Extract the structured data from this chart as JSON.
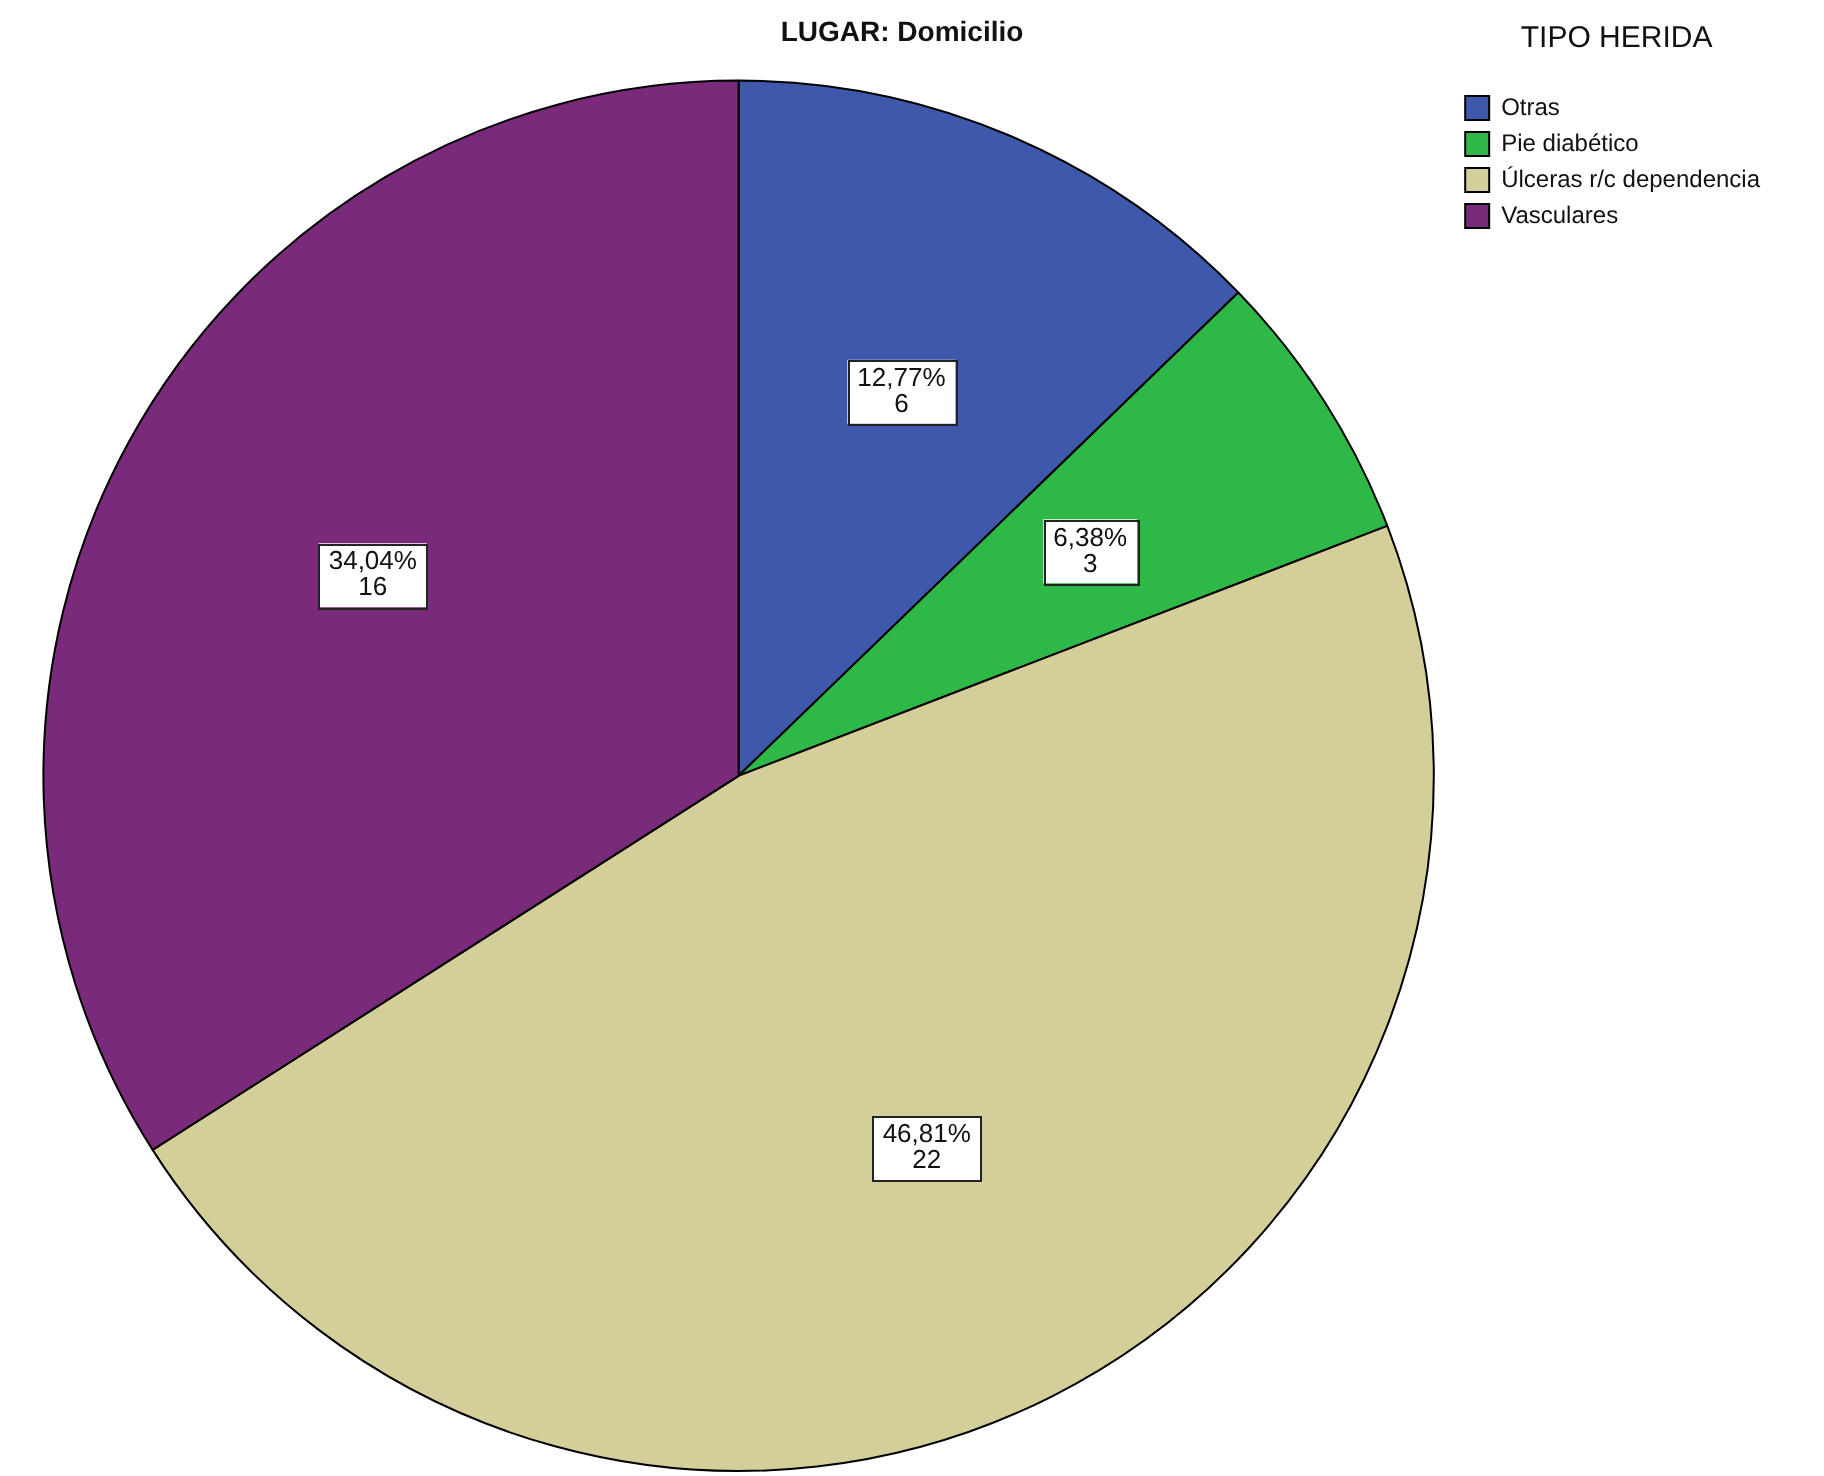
{
  "chart_data": {
    "type": "pie",
    "title": "LUGAR: Domicilio",
    "legend_title": "TIPO HERIDA",
    "legend": "top right",
    "categories": [
      "Otras",
      "Pie diabético",
      "Úlceras r/c dependencia",
      "Vasculares"
    ],
    "values": [
      6,
      3,
      22,
      16
    ],
    "colors": [
      "#3e58ac",
      "#2eb848",
      "#d4cf99",
      "#7a2a7a"
    ],
    "value_labels": [
      "12,77%\n6",
      "6,38%\n3",
      "46,81%\n22",
      "34,04%\n16"
    ]
  }
}
